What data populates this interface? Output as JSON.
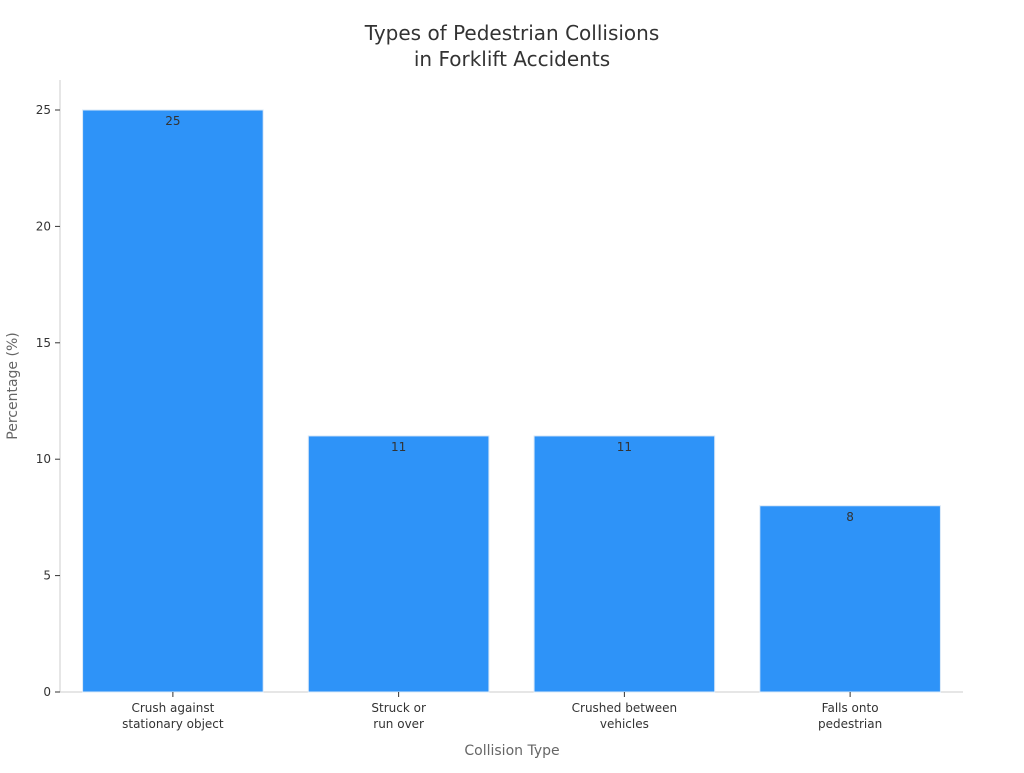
{
  "chart_data": {
    "type": "bar",
    "title_lines": [
      "Types of Pedestrian Collisions",
      "in Forklift Accidents"
    ],
    "xlabel": "Collision Type",
    "ylabel": "Percentage (%)",
    "categories": [
      [
        "Crush against",
        "stationary object"
      ],
      [
        "Struck or",
        "run over"
      ],
      [
        "Crushed between",
        "vehicles"
      ],
      [
        "Falls onto",
        "pedestrian"
      ]
    ],
    "values": [
      25,
      11,
      11,
      8
    ],
    "data_labels": [
      "25",
      "11",
      "11",
      "8"
    ],
    "ylim": [
      0,
      25
    ],
    "yticks": [
      0,
      5,
      10,
      15,
      20,
      25
    ],
    "ytick_labels": [
      "0",
      "5",
      "10",
      "15",
      "20",
      "25"
    ],
    "bar_color": "#2E93F8",
    "bar_edge_color": "#d9e8f7",
    "grid": false,
    "legend": "none"
  }
}
